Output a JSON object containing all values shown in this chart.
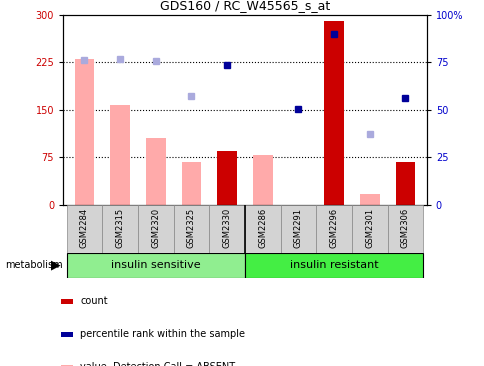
{
  "title": "GDS160 / RC_W45565_s_at",
  "samples": [
    "GSM2284",
    "GSM2315",
    "GSM2320",
    "GSM2325",
    "GSM2330",
    "GSM2286",
    "GSM2291",
    "GSM2296",
    "GSM2301",
    "GSM2306"
  ],
  "groups": [
    "insulin sensitive",
    "insulin resistant"
  ],
  "red_bars": [
    0,
    0,
    0,
    0,
    85,
    0,
    0,
    290,
    0,
    68
  ],
  "pink_bars": [
    230,
    158,
    105,
    68,
    0,
    78,
    0,
    0,
    18,
    0
  ],
  "blue_squares": [
    null,
    null,
    null,
    null,
    220,
    null,
    152,
    270,
    null,
    168
  ],
  "lavender_squares": [
    228,
    230,
    227,
    172,
    null,
    null,
    null,
    null,
    112,
    null
  ],
  "ylim_left": [
    0,
    300
  ],
  "ylim_right": [
    0,
    100
  ],
  "yticks_left": [
    0,
    75,
    150,
    225,
    300
  ],
  "yticks_right": [
    0,
    25,
    50,
    75,
    100
  ],
  "hlines": [
    75,
    150,
    225
  ],
  "bg_color": "#ffffff",
  "plot_bg": "#ffffff",
  "label_bg": "#d3d3d3",
  "group_color_sensitive": "#90ee90",
  "group_color_resistant": "#44ee44",
  "red_bar_color": "#cc0000",
  "pink_bar_color": "#ffaaaa",
  "blue_sq_color": "#000099",
  "lavender_sq_color": "#aaaadd",
  "left_axis_color": "#cc0000",
  "right_axis_color": "#0000cc",
  "bar_width": 0.55,
  "title_fontsize": 9,
  "tick_fontsize": 7,
  "label_fontsize": 6,
  "group_fontsize": 8,
  "legend_fontsize": 7
}
